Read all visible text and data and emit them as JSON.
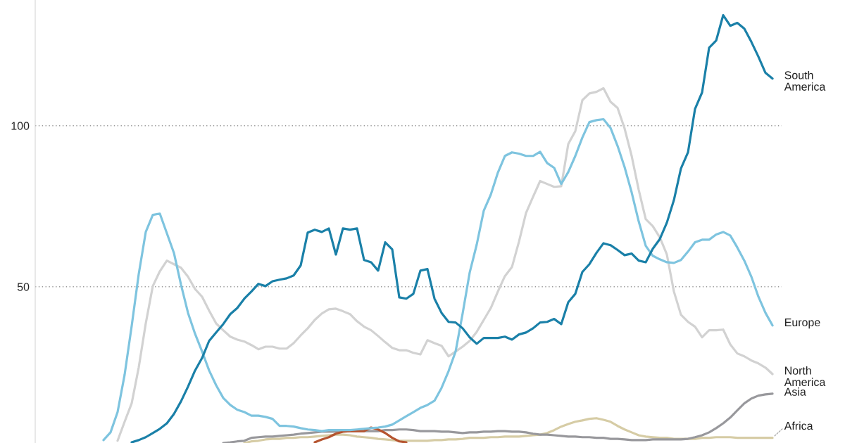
{
  "chart_data": {
    "type": "line",
    "categories": [
      null,
      null,
      null,
      null,
      null,
      null,
      null,
      null,
      null,
      null,
      null,
      null,
      null,
      null,
      null,
      null,
      null,
      null,
      null,
      null,
      null,
      null,
      null,
      null,
      null,
      null,
      null,
      null,
      null,
      null,
      null,
      null,
      null,
      null,
      null,
      null,
      null,
      null,
      null,
      null,
      null,
      null,
      null,
      null,
      null,
      null,
      null,
      null,
      null,
      null,
      null,
      null,
      null,
      null,
      null,
      null,
      null,
      null,
      null,
      null,
      null,
      null,
      null,
      null,
      null,
      null,
      null,
      null,
      null,
      null,
      null,
      null,
      null,
      null,
      null,
      null,
      null,
      null,
      null,
      null,
      null,
      null,
      null,
      null,
      null,
      null,
      null,
      null,
      null,
      null,
      null,
      null,
      null,
      null,
      null,
      null,
      null
    ],
    "series": [
      {
        "name": "North\nAmerica",
        "color": "#d2d2d2",
        "values": [
          null,
          null,
          null,
          2.2,
          8.1,
          13.8,
          24.9,
          38.6,
          50.2,
          54.8,
          58.1,
          57.0,
          55.9,
          53.1,
          49.3,
          46.9,
          42.6,
          38.6,
          36.5,
          34.5,
          33.6,
          33.0,
          31.9,
          30.6,
          31.4,
          31.4,
          30.8,
          30.8,
          32.5,
          34.9,
          37.1,
          39.7,
          41.7,
          43.0,
          43.2,
          42.4,
          41.5,
          39.3,
          37.6,
          36.5,
          34.7,
          32.8,
          31.0,
          30.3,
          30.3,
          29.5,
          29.0,
          33.4,
          32.5,
          31.7,
          28.4,
          29.9,
          31.4,
          33.2,
          36.0,
          39.7,
          43.4,
          48.5,
          53.3,
          56.1,
          64.0,
          72.9,
          77.9,
          82.8,
          81.9,
          81.0,
          81.2,
          94.3,
          98.3,
          107.9,
          110.0,
          110.5,
          111.6,
          107.4,
          105.5,
          99.1,
          90.6,
          80.1,
          71.0,
          68.8,
          65.3,
          60.0,
          48.5,
          41.3,
          39.1,
          37.6,
          34.3,
          36.5,
          36.5,
          36.7,
          32.1,
          29.3,
          28.4,
          27.1,
          26.2,
          24.9,
          22.9
        ]
      },
      {
        "name": "Africa",
        "color": "#d6cca5",
        "values": [
          null,
          null,
          null,
          null,
          null,
          null,
          null,
          null,
          null,
          null,
          null,
          null,
          null,
          null,
          null,
          null,
          null,
          null,
          null,
          null,
          null,
          1.5,
          2.0,
          2.2,
          2.6,
          2.8,
          2.8,
          3.1,
          3.1,
          3.3,
          3.3,
          3.5,
          3.7,
          3.9,
          4.1,
          4.1,
          3.9,
          3.5,
          3.3,
          3.1,
          2.8,
          2.6,
          2.4,
          2.2,
          2.2,
          2.2,
          2.2,
          2.2,
          2.4,
          2.4,
          2.6,
          2.6,
          2.8,
          3.1,
          3.1,
          3.1,
          3.3,
          3.3,
          3.5,
          3.5,
          3.5,
          3.7,
          3.9,
          4.1,
          4.6,
          5.5,
          6.6,
          7.4,
          8.1,
          8.5,
          9.0,
          9.2,
          8.7,
          8.1,
          6.8,
          5.7,
          4.8,
          3.9,
          3.5,
          3.3,
          3.1,
          3.1,
          2.8,
          2.8,
          2.8,
          2.8,
          3.1,
          3.1,
          3.3,
          3.3,
          3.3,
          3.1,
          3.1,
          3.1,
          3.1,
          3.1,
          3.1
        ]
      },
      {
        "name": "Asia",
        "color": "#98989c",
        "values": [
          null,
          null,
          null,
          null,
          null,
          null,
          null,
          null,
          null,
          null,
          null,
          null,
          null,
          null,
          null,
          null,
          null,
          null,
          1.5,
          1.7,
          2.0,
          2.2,
          3.1,
          3.3,
          3.5,
          3.5,
          3.7,
          3.9,
          4.1,
          4.4,
          4.6,
          4.8,
          5.0,
          5.0,
          5.0,
          5.2,
          5.2,
          5.2,
          5.2,
          5.2,
          5.2,
          5.5,
          5.5,
          5.7,
          5.7,
          5.5,
          5.2,
          5.2,
          5.2,
          5.0,
          5.0,
          4.8,
          4.6,
          4.8,
          4.8,
          5.0,
          5.0,
          5.2,
          5.2,
          5.0,
          5.0,
          4.8,
          4.4,
          4.1,
          4.1,
          3.9,
          3.7,
          3.5,
          3.5,
          3.3,
          3.3,
          3.1,
          3.1,
          2.8,
          2.8,
          2.6,
          2.4,
          2.4,
          2.4,
          2.6,
          2.6,
          2.6,
          2.6,
          2.6,
          2.8,
          3.3,
          3.9,
          4.8,
          6.1,
          7.6,
          9.4,
          11.6,
          13.8,
          15.3,
          16.2,
          16.6,
          16.8
        ]
      },
      {
        "color": "#b5542f",
        "values": [
          null,
          null,
          null,
          null,
          null,
          null,
          null,
          null,
          null,
          null,
          null,
          null,
          null,
          null,
          null,
          null,
          null,
          null,
          null,
          null,
          null,
          null,
          null,
          null,
          null,
          null,
          null,
          null,
          null,
          null,
          null,
          1.7,
          2.6,
          3.3,
          4.4,
          5.0,
          5.2,
          5.2,
          5.2,
          6.3,
          5.7,
          4.6,
          3.1,
          2.0,
          1.7,
          null,
          null,
          null,
          null,
          null,
          null,
          null,
          null,
          null,
          null,
          null,
          null,
          null,
          null,
          null,
          null,
          null,
          null,
          null,
          null,
          null,
          null,
          null,
          null,
          null,
          null,
          null,
          null,
          null,
          null,
          null,
          null,
          null,
          null,
          null,
          null,
          null,
          null,
          null,
          null,
          null,
          null,
          null,
          null,
          null,
          null,
          null,
          null,
          null,
          null,
          null,
          null
        ]
      },
      {
        "name": "Europe",
        "color": "#7ec4df",
        "values": [
          null,
          2.4,
          4.8,
          11.1,
          22.7,
          37.8,
          53.9,
          67.0,
          72.3,
          72.7,
          66.6,
          60.5,
          50.7,
          41.9,
          35.4,
          29.9,
          24.0,
          19.4,
          15.5,
          13.3,
          11.8,
          11.1,
          10.0,
          10.0,
          9.6,
          9.0,
          6.8,
          6.8,
          6.6,
          6.1,
          5.7,
          5.5,
          5.2,
          5.5,
          5.5,
          5.5,
          5.5,
          5.7,
          5.9,
          6.1,
          6.3,
          6.6,
          7.2,
          8.5,
          9.8,
          11.1,
          12.4,
          13.3,
          14.6,
          18.6,
          23.8,
          29.9,
          41.7,
          54.4,
          63.1,
          73.6,
          78.6,
          85.4,
          90.6,
          91.7,
          91.3,
          90.6,
          90.6,
          91.9,
          88.4,
          86.9,
          81.9,
          85.6,
          90.6,
          96.3,
          101.1,
          101.7,
          102.0,
          99.3,
          93.7,
          87.1,
          79.3,
          70.3,
          62.7,
          59.6,
          58.5,
          57.6,
          57.4,
          58.3,
          60.9,
          63.8,
          64.6,
          64.6,
          66.2,
          67.0,
          65.9,
          62.2,
          58.1,
          53.1,
          46.9,
          41.9,
          38.0
        ]
      },
      {
        "name": "South\nAmerica",
        "color": "#1a80a8",
        "values": [
          null,
          null,
          null,
          null,
          null,
          1.7,
          2.4,
          3.3,
          4.6,
          5.9,
          7.6,
          10.5,
          14.4,
          19.0,
          24.0,
          27.9,
          33.2,
          35.8,
          38.4,
          41.5,
          43.4,
          46.3,
          48.5,
          50.9,
          50.2,
          51.7,
          52.2,
          52.6,
          53.5,
          56.6,
          66.8,
          67.7,
          67.0,
          68.1,
          60.0,
          68.1,
          67.7,
          68.1,
          58.3,
          57.6,
          55.0,
          63.8,
          61.6,
          46.7,
          46.3,
          47.8,
          55.0,
          55.5,
          46.3,
          41.9,
          39.1,
          38.9,
          37.1,
          34.3,
          32.3,
          34.1,
          34.1,
          34.1,
          34.5,
          33.6,
          35.2,
          35.8,
          37.1,
          38.9,
          39.1,
          40.0,
          38.4,
          45.2,
          47.8,
          54.6,
          57.0,
          60.5,
          63.5,
          62.9,
          61.4,
          59.8,
          60.3,
          58.1,
          57.6,
          61.8,
          64.8,
          69.9,
          76.9,
          86.7,
          91.7,
          105.2,
          110.3,
          124.2,
          126.4,
          134.3,
          131.0,
          131.9,
          130.1,
          126.0,
          121.4,
          116.4,
          114.6
        ]
      }
    ],
    "ylim": [
      1.5,
      139
    ],
    "yticks": [
      50,
      100
    ],
    "grid": "y",
    "tick_labels": "y"
  }
}
